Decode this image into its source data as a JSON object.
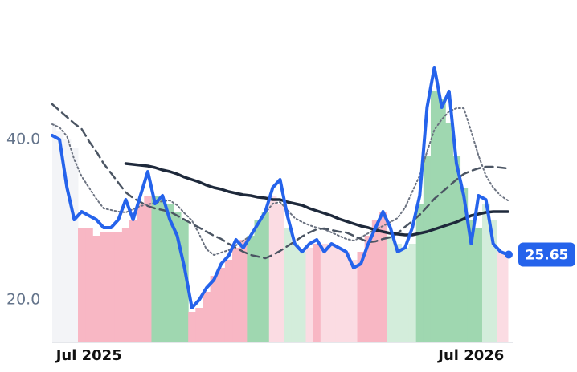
{
  "chart_data": {
    "type": "line",
    "categories": [
      null,
      null,
      null,
      null,
      null,
      "Jul 2025",
      null,
      null,
      null,
      null,
      null,
      null,
      null,
      null,
      null,
      null,
      null,
      null,
      null,
      null,
      null,
      null,
      null,
      null,
      null,
      null,
      null,
      null,
      null,
      null,
      null,
      null,
      null,
      null,
      null,
      null,
      null,
      null,
      null,
      null,
      null,
      null,
      null,
      null,
      null,
      null,
      null,
      null,
      null,
      null,
      null,
      null,
      null,
      null,
      null,
      null,
      null,
      "Jul 2026",
      null,
      null,
      null,
      null,
      null
    ],
    "ylim": [
      14.7,
      54.4
    ],
    "yticks": [
      {
        "value": 20,
        "label": "20.0"
      },
      {
        "value": 40,
        "label": "40.0"
      }
    ],
    "bars": {
      "values": [
        42,
        41,
        40,
        39,
        29,
        29,
        28,
        28.5,
        28.5,
        28.5,
        29,
        30,
        32,
        33,
        33,
        32.5,
        32,
        31,
        30,
        18.5,
        19,
        21,
        23,
        24,
        25,
        26.5,
        27.5,
        28,
        30,
        31,
        33,
        32,
        29,
        27,
        26,
        26.5,
        27,
        27,
        27,
        26.5,
        26,
        25,
        26,
        28,
        30,
        31,
        28,
        27,
        26.5,
        27,
        32,
        38,
        46,
        45,
        42,
        38,
        34,
        30,
        29,
        32,
        30,
        26,
        25.5
      ],
      "colors": [
        "#f3f4f7",
        "#f3f4f7",
        "#f3f4f7",
        "#f3f4f7",
        "#f8b7c4",
        "#f8b7c4",
        "#f8b7c4",
        "#f8b7c4",
        "#f8b7c4",
        "#f8b7c4",
        "#f8b7c4",
        "#f8b7c4",
        "#f8b7c4",
        "#f8b7c4",
        "#9fd7b0",
        "#9fd7b0",
        "#9fd7b0",
        "#9fd7b0",
        "#9fd7b0",
        "#f8b7c4",
        "#f8b7c4",
        "#f8b7c4",
        "#f8b7c4",
        "#f8b7c4",
        "#f8b7c4",
        "#f8b7c4",
        "#f8b7c4",
        "#9fd7b0",
        "#9fd7b0",
        "#9fd7b0",
        "#fbdce3",
        "#fbdce3",
        "#d3eddb",
        "#d3eddb",
        "#d3eddb",
        "#fbdce3",
        "#f8b7c4",
        "#fbdce3",
        "#fbdce3",
        "#fbdce3",
        "#fbdce3",
        "#fbdce3",
        "#f8b7c4",
        "#f8b7c4",
        "#f8b7c4",
        "#f8b7c4",
        "#d3eddb",
        "#d3eddb",
        "#d3eddb",
        "#d3eddb",
        "#9fd7b0",
        "#9fd7b0",
        "#9fd7b0",
        "#9fd7b0",
        "#9fd7b0",
        "#9fd7b0",
        "#9fd7b0",
        "#9fd7b0",
        "#9fd7b0",
        "#d3eddb",
        "#d3eddb",
        "#fbdce3",
        "#fbdce3"
      ]
    },
    "series": [
      {
        "color": "#6b7280",
        "style": "dotted",
        "values": [
          41.9,
          41.5,
          40.4,
          37.5,
          35.4,
          34,
          32.6,
          31.4,
          31.2,
          31,
          30.9,
          31.3,
          31.7,
          31.9,
          32.1,
          32.3,
          32.4,
          31.8,
          30.8,
          29.9,
          28.2,
          26.3,
          25.6,
          25.9,
          26.2,
          26.8,
          27.4,
          28,
          29.4,
          30.8,
          32,
          32.2,
          31.2,
          30.2,
          29.7,
          29.3,
          29,
          28.8,
          28.4,
          28,
          27.6,
          27.4,
          27.8,
          28.3,
          28.8,
          29.2,
          29.7,
          30.2,
          31.5,
          33.5,
          35.5,
          38.5,
          41.2,
          42.5,
          43.5,
          43.9,
          43.9,
          41,
          38,
          35.5,
          34,
          33,
          32.4
        ]
      },
      {
        "color": "#4b5563",
        "style": "dashed",
        "values": [
          44.4,
          43.6,
          42.8,
          42,
          41.3,
          39.8,
          38.5,
          37,
          35.8,
          34.6,
          33.4,
          32.7,
          32.2,
          31.7,
          31.4,
          31.2,
          31,
          30.5,
          30,
          29.5,
          29,
          28.5,
          28,
          27.6,
          27,
          26.5,
          26,
          25.6,
          25.4,
          25.2,
          25.6,
          26.1,
          26.7,
          27.3,
          27.9,
          28.4,
          28.8,
          28.9,
          28.7,
          28.5,
          28.4,
          28,
          27.6,
          27.2,
          27.3,
          27.6,
          27.8,
          28.3,
          29.1,
          29.8,
          30.6,
          31.6,
          32.6,
          33.4,
          34.2,
          35,
          35.7,
          36.1,
          36.4,
          36.6,
          36.6,
          36.5,
          36.4
        ]
      },
      {
        "color": "#1e293b",
        "style": "solid",
        "values": [
          null,
          null,
          null,
          null,
          null,
          null,
          null,
          null,
          null,
          null,
          37,
          36.9,
          36.8,
          36.7,
          36.5,
          36.2,
          36,
          35.7,
          35.3,
          35,
          34.7,
          34.3,
          34,
          33.8,
          33.5,
          33.3,
          33.1,
          33,
          32.8,
          32.7,
          32.5,
          32.5,
          32.2,
          32,
          31.8,
          31.4,
          31.1,
          30.8,
          30.5,
          30.1,
          29.8,
          29.5,
          29.2,
          29,
          28.7,
          28.5,
          28.3,
          28.2,
          28.1,
          28.1,
          28.3,
          28.5,
          28.8,
          29.1,
          29.4,
          29.7,
          30.1,
          30.5,
          30.7,
          30.9,
          31,
          31,
          31
        ]
      },
      {
        "color": "#2563eb",
        "style": "solid",
        "values": [
          40.5,
          40,
          34,
          30,
          31,
          30.5,
          30,
          29,
          29,
          30,
          32.5,
          30,
          33,
          36,
          32,
          33,
          30,
          28,
          24,
          19,
          20,
          21.5,
          22.5,
          24.5,
          25.5,
          27.5,
          26.5,
          28,
          29.5,
          31,
          34,
          35,
          30.5,
          27,
          26,
          27,
          27.5,
          26,
          27,
          26.5,
          26,
          24,
          24.5,
          27,
          29,
          31,
          29,
          26,
          26.5,
          29,
          33,
          44,
          49,
          44,
          46,
          37,
          33,
          27,
          33,
          32.5,
          27,
          26,
          25.65
        ]
      }
    ]
  }
}
